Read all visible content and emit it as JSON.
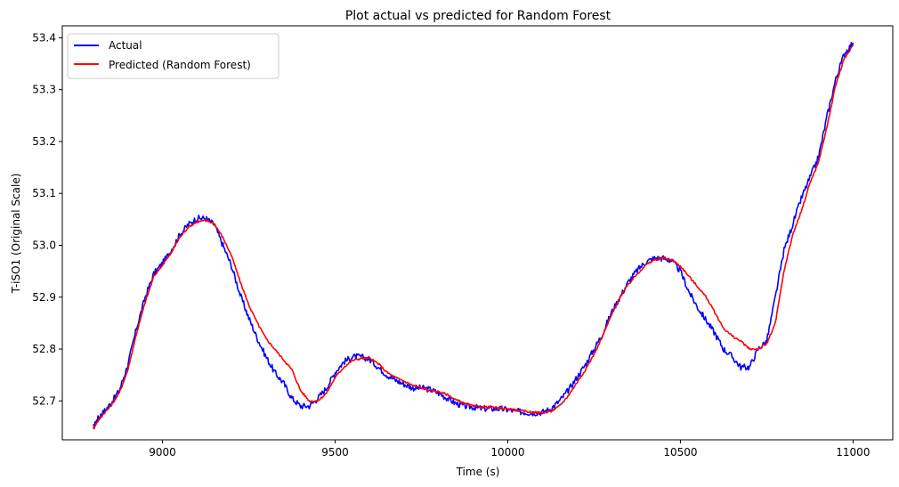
{
  "chart_data": {
    "type": "line",
    "title": "Plot actual vs predicted for Random Forest",
    "xlabel": "Time (s)",
    "ylabel": "T-iSO1 (Original Scale)",
    "xlim": [
      8710,
      11115
    ],
    "ylim": [
      52.625,
      53.423
    ],
    "xticks": [
      9000,
      9500,
      10000,
      10500,
      11000
    ],
    "yticks": [
      52.7,
      52.8,
      52.9,
      53.0,
      53.1,
      53.2,
      53.3,
      53.4
    ],
    "grid": false,
    "legend_position": "upper-left",
    "series": [
      {
        "name": "Actual",
        "color": "#0000ff",
        "x": [
          8800,
          8812,
          8825,
          8850,
          8875,
          8900,
          8925,
          8950,
          8975,
          9000,
          9025,
          9050,
          9075,
          9100,
          9125,
          9150,
          9175,
          9200,
          9225,
          9250,
          9275,
          9300,
          9325,
          9350,
          9375,
          9400,
          9425,
          9450,
          9475,
          9500,
          9525,
          9550,
          9575,
          9600,
          9625,
          9650,
          9675,
          9700,
          9725,
          9750,
          9775,
          9800,
          9825,
          9850,
          9875,
          9900,
          9925,
          9950,
          9975,
          10000,
          10025,
          10050,
          10075,
          10100,
          10125,
          10150,
          10175,
          10200,
          10225,
          10250,
          10275,
          10300,
          10325,
          10350,
          10375,
          10400,
          10425,
          10450,
          10475,
          10500,
          10525,
          10550,
          10575,
          10600,
          10625,
          10650,
          10675,
          10700,
          10725,
          10750,
          10775,
          10800,
          10825,
          10850,
          10875,
          10900,
          10925,
          10950,
          10975,
          11000
        ],
        "y": [
          52.648,
          52.665,
          52.675,
          52.695,
          52.72,
          52.77,
          52.84,
          52.9,
          52.945,
          52.965,
          52.99,
          53.02,
          53.04,
          53.052,
          53.052,
          53.04,
          53.0,
          52.96,
          52.905,
          52.86,
          52.82,
          52.785,
          52.755,
          52.735,
          52.705,
          52.69,
          52.69,
          52.705,
          52.725,
          52.755,
          52.775,
          52.785,
          52.785,
          52.78,
          52.765,
          52.75,
          52.74,
          52.732,
          52.725,
          52.725,
          52.722,
          52.715,
          52.705,
          52.695,
          52.69,
          52.688,
          52.685,
          52.685,
          52.685,
          52.683,
          52.68,
          52.678,
          52.677,
          52.678,
          52.685,
          52.7,
          52.72,
          52.745,
          52.77,
          52.8,
          52.83,
          52.87,
          52.9,
          52.93,
          52.952,
          52.968,
          52.975,
          52.975,
          52.97,
          52.95,
          52.91,
          52.88,
          52.855,
          52.83,
          52.8,
          52.785,
          52.765,
          52.765,
          52.8,
          52.815,
          52.9,
          52.99,
          53.04,
          53.09,
          53.13,
          53.17,
          53.25,
          53.32,
          53.37,
          53.39
        ]
      },
      {
        "name": "Predicted (Random Forest)",
        "color": "#ff0000",
        "x": [
          8800,
          8812,
          8825,
          8850,
          8875,
          8900,
          8925,
          8950,
          8975,
          9000,
          9025,
          9050,
          9075,
          9100,
          9125,
          9150,
          9175,
          9200,
          9225,
          9250,
          9275,
          9300,
          9325,
          9350,
          9375,
          9400,
          9425,
          9450,
          9475,
          9500,
          9525,
          9550,
          9575,
          9600,
          9625,
          9650,
          9675,
          9700,
          9725,
          9750,
          9775,
          9800,
          9825,
          9850,
          9875,
          9900,
          9925,
          9950,
          9975,
          10000,
          10025,
          10050,
          10075,
          10100,
          10125,
          10150,
          10175,
          10200,
          10225,
          10250,
          10275,
          10300,
          10325,
          10350,
          10375,
          10400,
          10425,
          10450,
          10475,
          10500,
          10525,
          10550,
          10575,
          10600,
          10625,
          10650,
          10675,
          10700,
          10725,
          10750,
          10775,
          10800,
          10825,
          10850,
          10875,
          10900,
          10925,
          10950,
          10975,
          11000
        ],
        "y": [
          52.648,
          52.66,
          52.672,
          52.69,
          52.715,
          52.76,
          52.83,
          52.89,
          52.94,
          52.962,
          52.985,
          53.015,
          53.035,
          53.045,
          53.048,
          53.042,
          53.015,
          52.98,
          52.93,
          52.885,
          52.85,
          52.82,
          52.8,
          52.78,
          52.76,
          52.72,
          52.7,
          52.7,
          52.715,
          52.745,
          52.765,
          52.778,
          52.782,
          52.782,
          52.772,
          52.755,
          52.745,
          52.738,
          52.73,
          52.725,
          52.72,
          52.718,
          52.712,
          52.702,
          52.695,
          52.69,
          52.688,
          52.688,
          52.686,
          52.685,
          52.682,
          52.68,
          52.678,
          52.677,
          52.68,
          52.69,
          52.71,
          52.735,
          52.76,
          52.79,
          52.825,
          52.865,
          52.9,
          52.925,
          52.945,
          52.962,
          52.972,
          52.975,
          52.972,
          52.96,
          52.94,
          52.92,
          52.9,
          52.87,
          52.84,
          52.825,
          52.815,
          52.8,
          52.8,
          52.81,
          52.85,
          52.95,
          53.02,
          53.065,
          53.12,
          53.16,
          53.23,
          53.31,
          53.36,
          53.385
        ]
      }
    ]
  }
}
